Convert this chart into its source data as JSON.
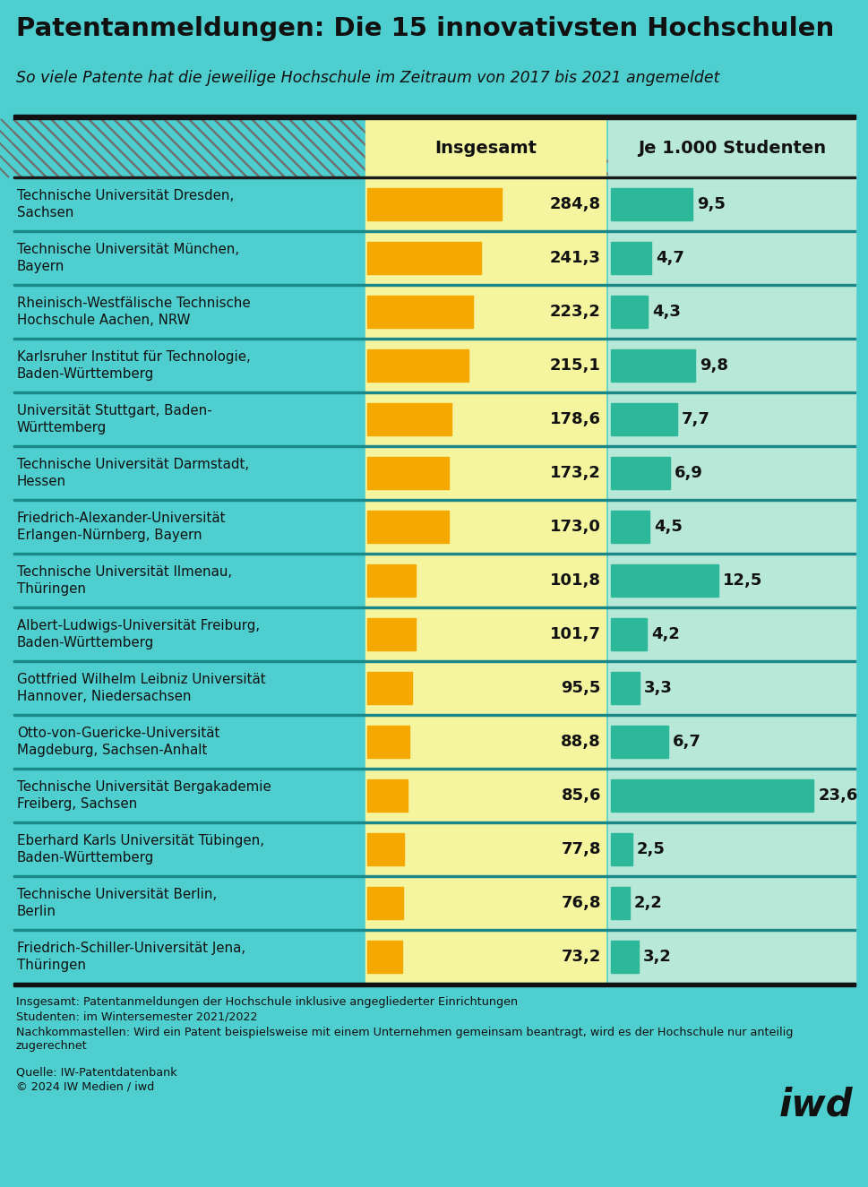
{
  "title": "Patentanmeldungen: Die 15 innovativsten Hochschulen",
  "subtitle": "So viele Patente hat die jeweilige Hochschule im Zeitraum von 2017 bis 2021 angemeldet",
  "bg_color": "#4ECECE",
  "col1_header": "Insgesamt",
  "col2_header": "Je 1.000 Studenten",
  "universities": [
    "Technische Universität Dresden,\nSachsen",
    "Technische Universität München,\nBayern",
    "Rheinisch-Westfälische Technische\nHochschule Aachen, NRW",
    "Karlsruher Institut für Technologie,\nBaden-Württemberg",
    "Universität Stuttgart, Baden-\nWürttemberg",
    "Technische Universität Darmstadt,\nHessen",
    "Friedrich-Alexander-Universität\nErlangen-Nürnberg, Bayern",
    "Technische Universität Ilmenau,\nThüringen",
    "Albert-Ludwigs-Universität Freiburg,\nBaden-Württemberg",
    "Gottfried Wilhelm Leibniz Universität\nHannover, Niedersachsen",
    "Otto-von-Guericke-Universität\nMagdeburg, Sachsen-Anhalt",
    "Technische Universität Bergakademie\nFreiberg, Sachsen",
    "Eberhard Karls Universität Tübingen,\nBaden-Württemberg",
    "Technische Universität Berlin,\nBerlin",
    "Friedrich-Schiller-Universität Jena,\nThüringen"
  ],
  "values_total": [
    284.8,
    241.3,
    223.2,
    215.1,
    178.6,
    173.2,
    173.0,
    101.8,
    101.7,
    95.5,
    88.8,
    85.6,
    77.8,
    76.8,
    73.2
  ],
  "values_per1000": [
    9.5,
    4.7,
    4.3,
    9.8,
    7.7,
    6.9,
    4.5,
    12.5,
    4.2,
    3.3,
    6.7,
    23.6,
    2.5,
    2.2,
    3.2
  ],
  "bar_color_total": "#F5A800",
  "bar_color_per1000": "#2DB899",
  "col1_bg": "#F5F5A0",
  "col2_bg": "#B8E8D8",
  "separator_color": "#2a9090",
  "footnote1": "Insgesamt: Patentanmeldungen der Hochschule inklusive angegliederter Einrichtungen",
  "footnote2": "Studenten: im Wintersemester 2021/2022",
  "footnote3": "Nachkommastellen: Wird ein Patent beispielsweise mit einem Unternehmen gemeinsam beantragt, wird es der Hochschule nur anteilig zugerechnet",
  "source1": "Quelle: IW-Patentdatenbank",
  "source2": "© 2024 IW Medien / iwd",
  "iwd_logo": "iwd",
  "max_total": 284.8,
  "max_per1000": 23.6
}
